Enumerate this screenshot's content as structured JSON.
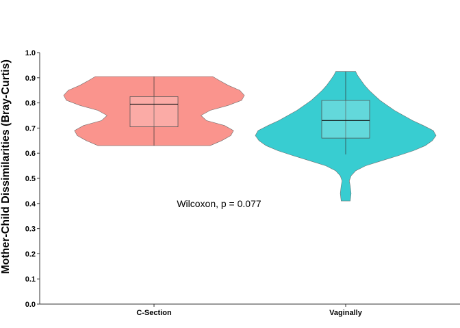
{
  "chart_data": {
    "type": "violin",
    "ylabel": "Mother-Child Dissimilarities (Bray-Curtis)",
    "xlabel": "",
    "ylim": [
      0.0,
      1.0
    ],
    "yticks": [
      "0.0",
      "0.1",
      "0.2",
      "0.3",
      "0.4",
      "0.5",
      "0.6",
      "0.7",
      "0.8",
      "0.9",
      "1.0"
    ],
    "ytick_values": [
      0.0,
      0.1,
      0.2,
      0.3,
      0.4,
      0.5,
      0.6,
      0.7,
      0.8,
      0.9,
      1.0
    ],
    "categories": [
      "C-Section",
      "Vaginally"
    ],
    "grid": false,
    "legend": "none",
    "annotation": "Wilcoxon, p = 0.077",
    "series": [
      {
        "category": "C-Section",
        "color": "#F8766D",
        "min": 0.63,
        "q1": 0.705,
        "median": 0.795,
        "q3": 0.825,
        "max": 0.905,
        "density": [
          [
            0.63,
            0.62
          ],
          [
            0.65,
            0.75
          ],
          [
            0.67,
            0.85
          ],
          [
            0.69,
            0.88
          ],
          [
            0.71,
            0.78
          ],
          [
            0.73,
            0.58
          ],
          [
            0.75,
            0.52
          ],
          [
            0.77,
            0.62
          ],
          [
            0.79,
            0.82
          ],
          [
            0.81,
            0.97
          ],
          [
            0.83,
            1.0
          ],
          [
            0.85,
            0.95
          ],
          [
            0.87,
            0.82
          ],
          [
            0.89,
            0.72
          ],
          [
            0.905,
            0.65
          ]
        ]
      },
      {
        "category": "Vaginally",
        "color": "#00BFC4",
        "min": 0.595,
        "q1": 0.66,
        "median": 0.73,
        "q3": 0.81,
        "max": 0.925,
        "density": [
          [
            0.41,
            0.05
          ],
          [
            0.44,
            0.06
          ],
          [
            0.47,
            0.05
          ],
          [
            0.49,
            0.04
          ],
          [
            0.51,
            0.06
          ],
          [
            0.53,
            0.11
          ],
          [
            0.55,
            0.22
          ],
          [
            0.57,
            0.4
          ],
          [
            0.59,
            0.58
          ],
          [
            0.61,
            0.75
          ],
          [
            0.63,
            0.88
          ],
          [
            0.65,
            0.96
          ],
          [
            0.67,
            1.0
          ],
          [
            0.69,
            0.97
          ],
          [
            0.71,
            0.86
          ],
          [
            0.73,
            0.74
          ],
          [
            0.75,
            0.64
          ],
          [
            0.77,
            0.54
          ],
          [
            0.79,
            0.46
          ],
          [
            0.81,
            0.38
          ],
          [
            0.83,
            0.32
          ],
          [
            0.85,
            0.26
          ],
          [
            0.87,
            0.21
          ],
          [
            0.89,
            0.17
          ],
          [
            0.91,
            0.13
          ],
          [
            0.925,
            0.11
          ]
        ]
      }
    ]
  }
}
